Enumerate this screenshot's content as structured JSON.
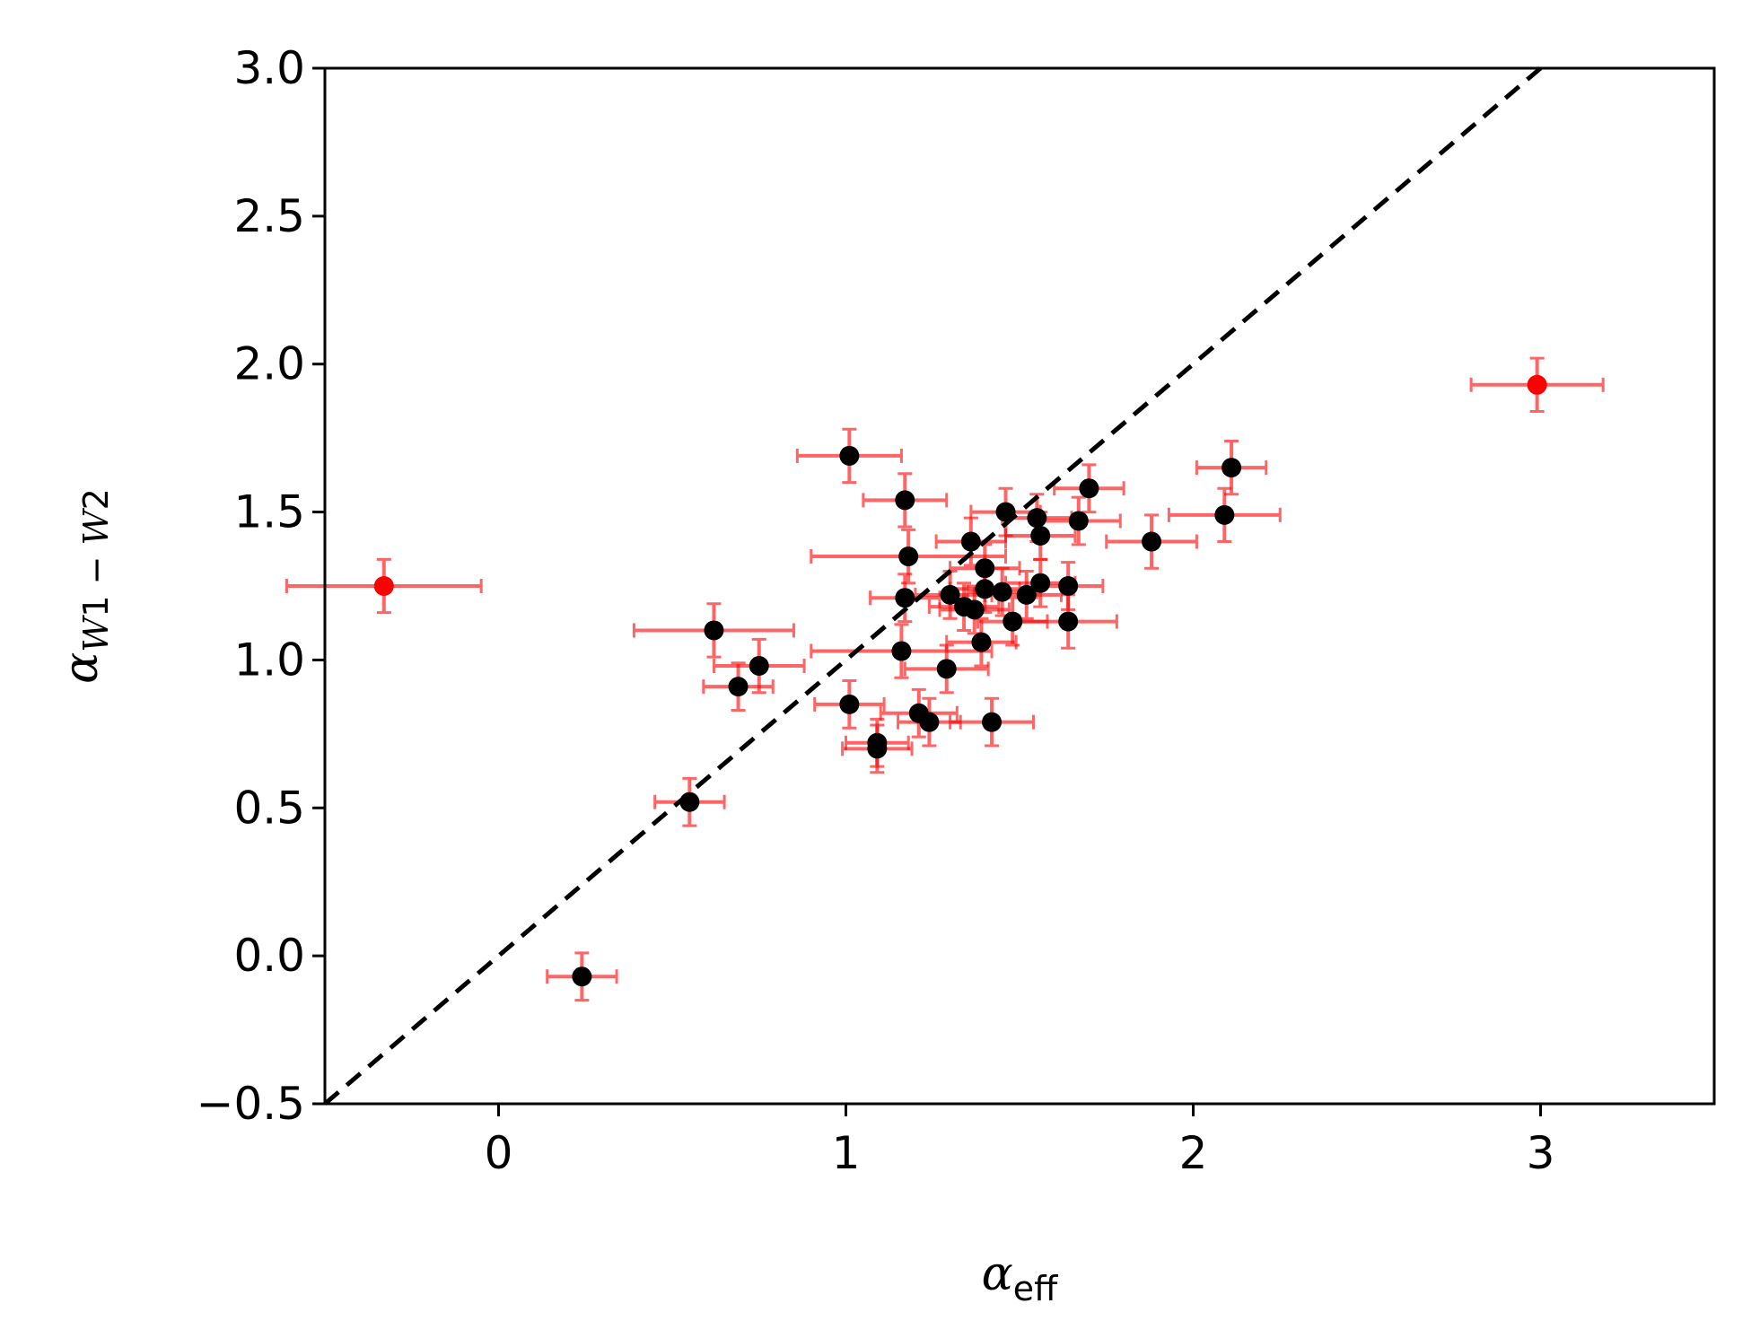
{
  "chart_data": {
    "type": "scatter",
    "xlabel": "α_eff",
    "ylabel": "α_W1-W2",
    "xlabel_main": "α",
    "xlabel_sub": "eff",
    "ylabel_main": "α",
    "ylabel_sub_parts": [
      "W",
      "1",
      " − ",
      "W",
      "2"
    ],
    "xlim": [
      -0.5,
      3.5
    ],
    "ylim": [
      -0.5,
      3.0
    ],
    "x_ticks": [
      0,
      1,
      2,
      3
    ],
    "y_ticks": [
      -0.5,
      0.0,
      0.5,
      1.0,
      1.5,
      2.0,
      2.5,
      3.0
    ],
    "x_tick_labels": [
      "0",
      "1",
      "2",
      "3"
    ],
    "y_tick_labels": [
      "−0.5",
      "0.0",
      "0.5",
      "1.0",
      "1.5",
      "2.0",
      "2.5",
      "3.0"
    ],
    "grid": false,
    "legend": "none",
    "reference_line": {
      "style": "dashed",
      "color": "#000000",
      "from": [
        -0.5,
        -0.5
      ],
      "to": [
        3.5,
        3.5
      ]
    },
    "colors": {
      "main_points": "#000000",
      "outlier_points": "#ff0000",
      "error_bars": "#ff0000"
    },
    "series": [
      {
        "color": "#000000",
        "points": [
          {
            "x": 0.24,
            "y": -0.07,
            "xerr": 0.1,
            "yerr": 0.08
          },
          {
            "x": 0.55,
            "y": 0.52,
            "xerr": 0.1,
            "yerr": 0.08
          },
          {
            "x": 0.62,
            "y": 1.1,
            "xerr": 0.23,
            "yerr": 0.09
          },
          {
            "x": 0.69,
            "y": 0.91,
            "xerr": 0.1,
            "yerr": 0.08
          },
          {
            "x": 0.75,
            "y": 0.98,
            "xerr": 0.13,
            "yerr": 0.09
          },
          {
            "x": 1.01,
            "y": 1.69,
            "xerr": 0.15,
            "yerr": 0.09
          },
          {
            "x": 1.01,
            "y": 0.85,
            "xerr": 0.1,
            "yerr": 0.08
          },
          {
            "x": 1.09,
            "y": 0.72,
            "xerr": 0.09,
            "yerr": 0.08
          },
          {
            "x": 1.09,
            "y": 0.7,
            "xerr": 0.1,
            "yerr": 0.08
          },
          {
            "x": 1.16,
            "y": 1.03,
            "xerr": 0.26,
            "yerr": 0.09
          },
          {
            "x": 1.17,
            "y": 1.54,
            "xerr": 0.12,
            "yerr": 0.09
          },
          {
            "x": 1.17,
            "y": 1.21,
            "xerr": 0.1,
            "yerr": 0.08
          },
          {
            "x": 1.18,
            "y": 1.35,
            "xerr": 0.28,
            "yerr": 0.09
          },
          {
            "x": 1.21,
            "y": 0.82,
            "xerr": 0.11,
            "yerr": 0.08
          },
          {
            "x": 1.24,
            "y": 0.79,
            "xerr": 0.09,
            "yerr": 0.08
          },
          {
            "x": 1.29,
            "y": 0.97,
            "xerr": 0.12,
            "yerr": 0.08
          },
          {
            "x": 1.3,
            "y": 1.22,
            "xerr": 0.1,
            "yerr": 0.08
          },
          {
            "x": 1.34,
            "y": 1.18,
            "xerr": 0.1,
            "yerr": 0.08
          },
          {
            "x": 1.36,
            "y": 1.4,
            "xerr": 0.1,
            "yerr": 0.08
          },
          {
            "x": 1.37,
            "y": 1.17,
            "xerr": 0.1,
            "yerr": 0.08
          },
          {
            "x": 1.39,
            "y": 1.06,
            "xerr": 0.1,
            "yerr": 0.08
          },
          {
            "x": 1.4,
            "y": 1.31,
            "xerr": 0.1,
            "yerr": 0.08
          },
          {
            "x": 1.4,
            "y": 1.24,
            "xerr": 0.1,
            "yerr": 0.08
          },
          {
            "x": 1.42,
            "y": 0.79,
            "xerr": 0.12,
            "yerr": 0.08
          },
          {
            "x": 1.45,
            "y": 1.23,
            "xerr": 0.1,
            "yerr": 0.08
          },
          {
            "x": 1.46,
            "y": 1.5,
            "xerr": 0.1,
            "yerr": 0.08
          },
          {
            "x": 1.48,
            "y": 1.13,
            "xerr": 0.1,
            "yerr": 0.08
          },
          {
            "x": 1.52,
            "y": 1.22,
            "xerr": 0.1,
            "yerr": 0.08
          },
          {
            "x": 1.55,
            "y": 1.48,
            "xerr": 0.1,
            "yerr": 0.08
          },
          {
            "x": 1.56,
            "y": 1.26,
            "xerr": 0.1,
            "yerr": 0.08
          },
          {
            "x": 1.56,
            "y": 1.42,
            "xerr": 0.1,
            "yerr": 0.08
          },
          {
            "x": 1.64,
            "y": 1.25,
            "xerr": 0.1,
            "yerr": 0.08
          },
          {
            "x": 1.64,
            "y": 1.13,
            "xerr": 0.14,
            "yerr": 0.09
          },
          {
            "x": 1.67,
            "y": 1.47,
            "xerr": 0.12,
            "yerr": 0.08
          },
          {
            "x": 1.7,
            "y": 1.58,
            "xerr": 0.1,
            "yerr": 0.08
          },
          {
            "x": 1.88,
            "y": 1.4,
            "xerr": 0.13,
            "yerr": 0.09
          },
          {
            "x": 2.09,
            "y": 1.49,
            "xerr": 0.16,
            "yerr": 0.09
          },
          {
            "x": 2.11,
            "y": 1.65,
            "xerr": 0.1,
            "yerr": 0.09
          }
        ]
      },
      {
        "color": "#ff0000",
        "points": [
          {
            "x": -0.33,
            "y": 1.25,
            "xerr": 0.28,
            "yerr": 0.09
          },
          {
            "x": 2.99,
            "y": 1.93,
            "xerr": 0.19,
            "yerr": 0.09
          }
        ]
      }
    ]
  }
}
